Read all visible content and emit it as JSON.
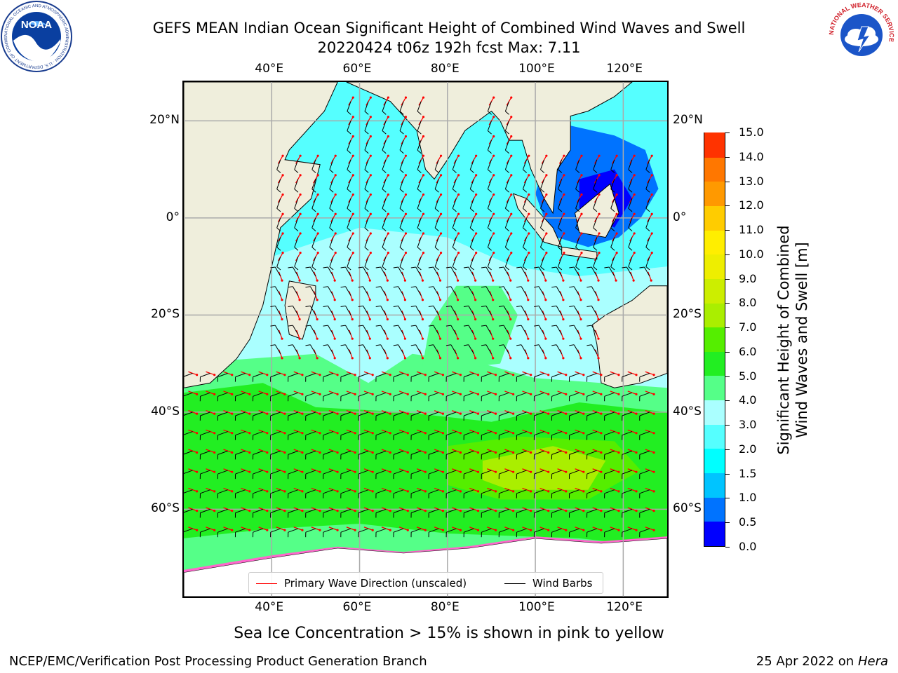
{
  "header": {
    "title_line1": "GEFS MEAN Indian Ocean Significant Height of Combined Wind Waves and Swell",
    "title_line2": "20220424 t06z 192h fcst   Max: 7.11"
  },
  "logos": {
    "noaa_text": "NOAA",
    "noaa_ring_text": "NATIONAL OCEANIC AND ATMOSPHERIC ADMINISTRATION · U.S. DEPARTMENT OF COMMERCE",
    "nws_ring_text": "NATIONAL WEATHER SERVICE"
  },
  "map": {
    "lon_labels": [
      "40°E",
      "60°E",
      "80°E",
      "100°E",
      "120°E"
    ],
    "lat_labels": [
      "20°N",
      "0°",
      "20°S",
      "40°S",
      "60°S"
    ],
    "lon_values": [
      40,
      60,
      80,
      100,
      120
    ],
    "lat_values": [
      20,
      0,
      -20,
      -40,
      -60
    ],
    "lon_range": [
      20,
      130
    ],
    "lat_range": [
      -78,
      28
    ],
    "land_color": "#efeedc",
    "ice_note": "Sea Ice Concentration > 15% is shown in pink to yellow"
  },
  "colorbar": {
    "label": "Significant Height of Combined\nWind Waves and Swell [m]",
    "label_line1": "Significant Height of Combined",
    "label_line2": "Wind Waves and Swell [m]",
    "ticks": [
      "0.0",
      "0.5",
      "1.0",
      "1.5",
      "2.0",
      "3.0",
      "4.0",
      "5.0",
      "6.0",
      "7.0",
      "8.0",
      "9.0",
      "10.0",
      "11.0",
      "12.0",
      "13.0",
      "14.0",
      "15.0"
    ],
    "colors": [
      "#0000ff",
      "#0073ff",
      "#00c4ff",
      "#00ffff",
      "#55ffff",
      "#aaffff",
      "#55ff88",
      "#22ee22",
      "#55ee00",
      "#aaee00",
      "#ccee00",
      "#eeee00",
      "#ffee00",
      "#ffcc00",
      "#ff9900",
      "#ff7700",
      "#ff3300",
      "#ff0000"
    ]
  },
  "legend": {
    "wave_direction_label": "Primary Wave Direction (unscaled)",
    "wave_direction_color": "#ff0000",
    "wind_barbs_label": "Wind Barbs",
    "wind_barbs_color": "#000000"
  },
  "footer": {
    "left": "NCEP/EMC/Verification Post Processing Product Generation Branch",
    "date": "25 Apr 2022 on ",
    "host": "Hera"
  }
}
